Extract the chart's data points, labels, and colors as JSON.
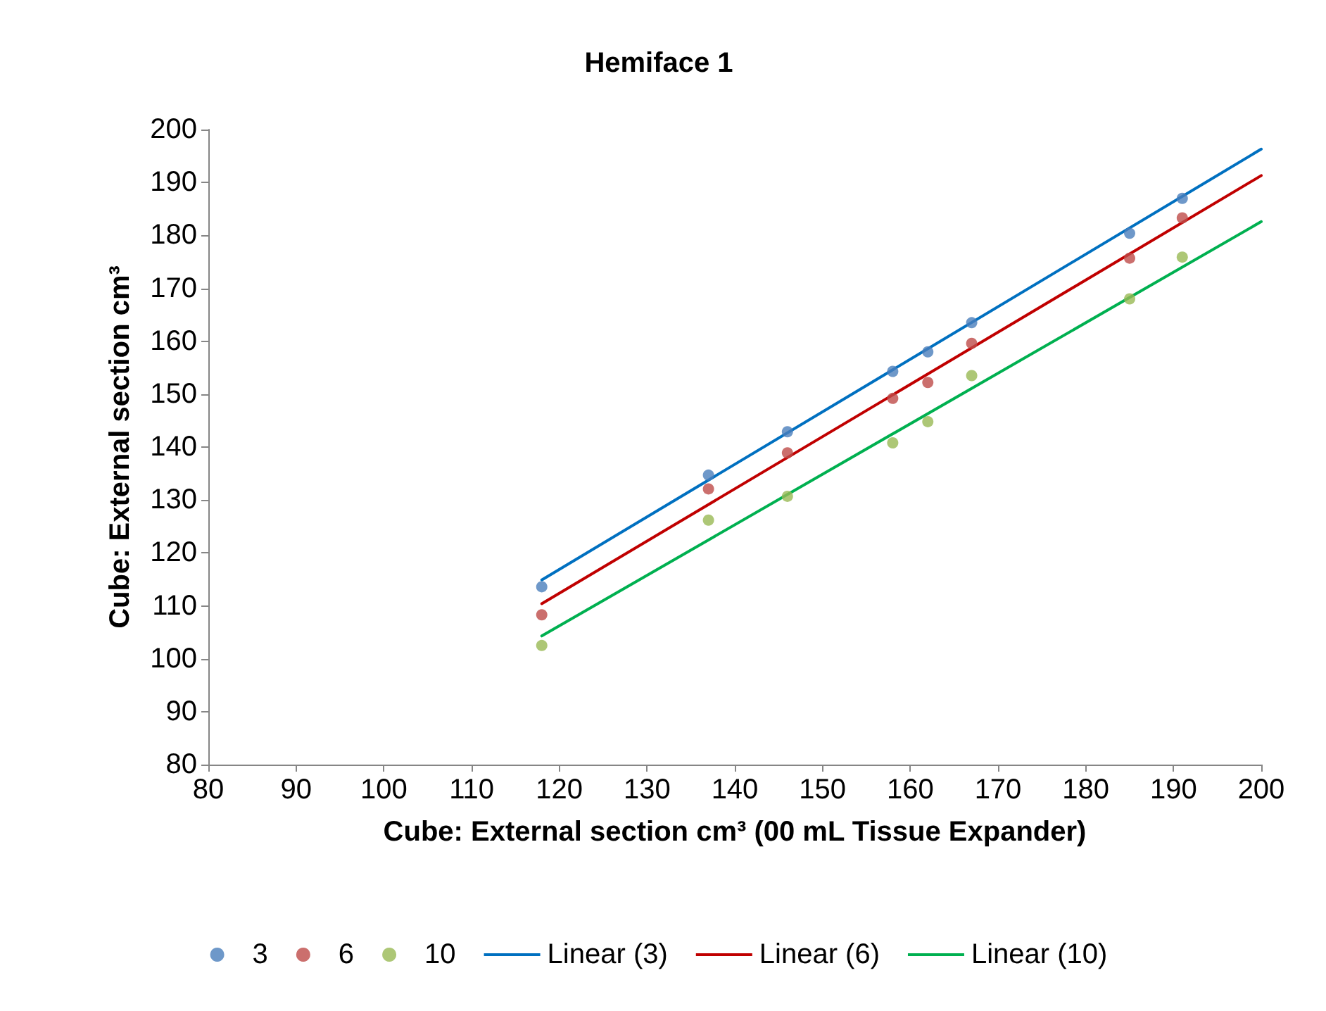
{
  "chart_data": {
    "type": "scatter",
    "title": "Hemiface 1",
    "xlabel": "Cube: External section cm³ (00 mL Tissue Expander)",
    "ylabel": "Cube: External section cm³",
    "xlim": [
      80,
      200
    ],
    "ylim": [
      80,
      200
    ],
    "xticks": [
      80,
      90,
      100,
      110,
      120,
      130,
      140,
      150,
      160,
      170,
      180,
      190,
      200
    ],
    "yticks": [
      80,
      90,
      100,
      110,
      120,
      130,
      140,
      150,
      160,
      170,
      180,
      190,
      200
    ],
    "legend": "bottom",
    "marker": "circle",
    "series": [
      {
        "name": "3",
        "color": "#4a7ebb",
        "x": [
          118,
          137,
          146,
          158,
          162,
          167,
          185,
          191
        ],
        "values": [
          113.6,
          134.7,
          142.9,
          154.3,
          158,
          163.5,
          180.4,
          187
        ]
      },
      {
        "name": "6",
        "color": "#be4b48",
        "x": [
          118,
          137,
          146,
          158,
          162,
          167,
          185,
          191
        ],
        "values": [
          108.3,
          132.1,
          138.9,
          149.2,
          152.2,
          159.6,
          175.7,
          183.3
        ]
      },
      {
        "name": "10",
        "color": "#98b954",
        "x": [
          118,
          137,
          146,
          158,
          162,
          167,
          185,
          191
        ],
        "values": [
          102.5,
          126.2,
          130.7,
          140.8,
          144.8,
          153.5,
          168,
          175.9
        ]
      },
      {
        "name": "Linear (3)",
        "type": "line",
        "marker": "none",
        "color": "#0070c0",
        "x": [
          118,
          200
        ],
        "values": [
          114.9,
          196.3
        ]
      },
      {
        "name": "Linear (6)",
        "type": "line",
        "marker": "none",
        "color": "#c00000",
        "x": [
          118,
          200
        ],
        "values": [
          110.4,
          191.3
        ]
      },
      {
        "name": "Linear (10)",
        "type": "line",
        "marker": "none",
        "color": "#00b050",
        "x": [
          118,
          200
        ],
        "values": [
          104.3,
          182.6
        ]
      }
    ]
  }
}
